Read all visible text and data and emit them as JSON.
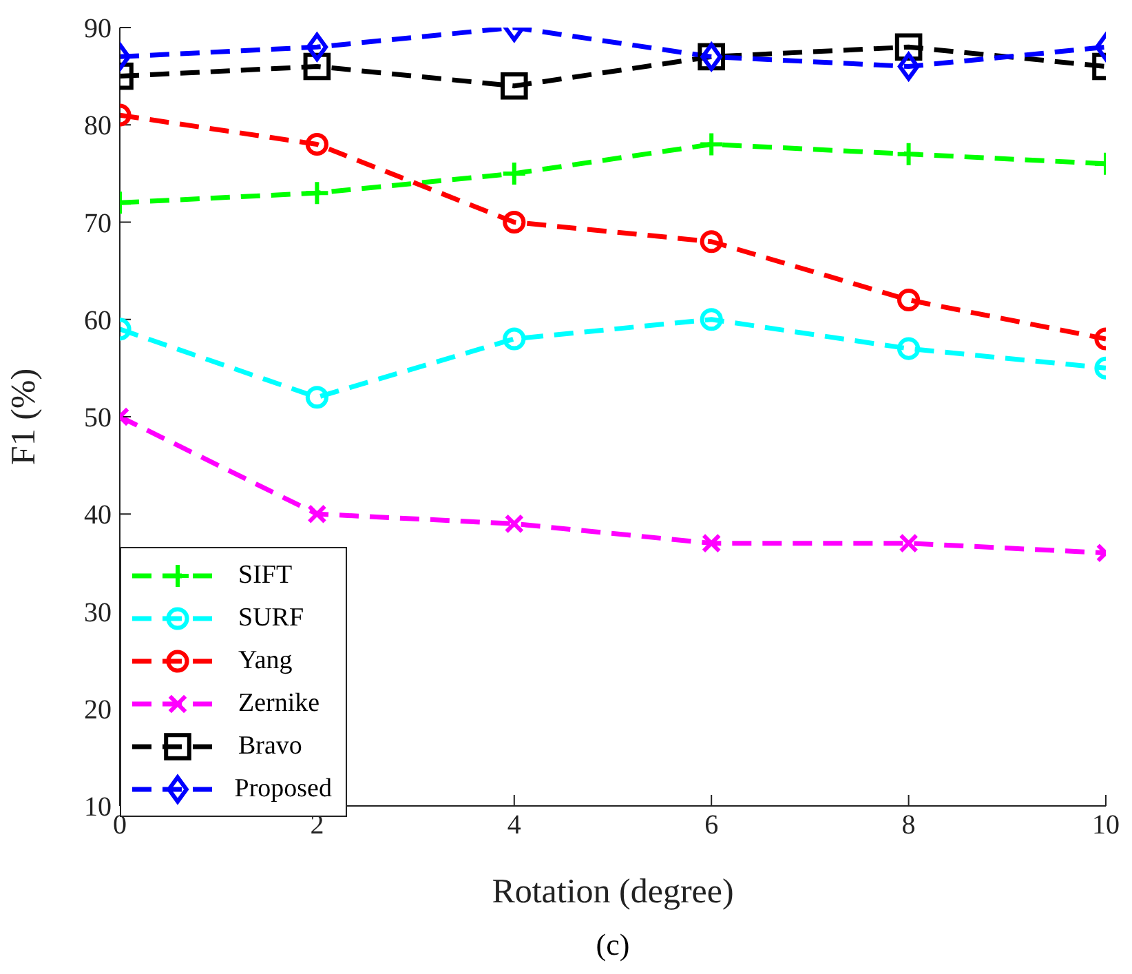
{
  "chart_data": {
    "type": "line",
    "xlabel": "Rotation (degree)",
    "ylabel": "F1 (%)",
    "annotations": [
      "(c)"
    ],
    "x": [
      0,
      2,
      4,
      6,
      8,
      10
    ],
    "xlim": [
      0,
      10
    ],
    "xticks": [
      0,
      2,
      4,
      6,
      8,
      10
    ],
    "ylim": [
      10,
      90
    ],
    "yticks": [
      10,
      20,
      30,
      40,
      50,
      60,
      70,
      80,
      90
    ],
    "legend": "bottom left",
    "line_style": "dashed",
    "series": [
      {
        "name": "SIFT",
        "color": "#00ff00",
        "marker": "plus",
        "values": [
          72,
          73,
          75,
          78,
          77,
          76
        ]
      },
      {
        "name": "SURF",
        "color": "#00ffff",
        "marker": "circle",
        "values": [
          59,
          52,
          58,
          60,
          57,
          55
        ]
      },
      {
        "name": "Yang",
        "color": "#ff0000",
        "marker": "circle",
        "values": [
          81,
          78,
          70,
          68,
          62,
          58
        ]
      },
      {
        "name": "Zernike",
        "color": "#ff00ff",
        "marker": "cross",
        "values": [
          50,
          40,
          39,
          37,
          37,
          36
        ]
      },
      {
        "name": "Bravo",
        "color": "#000000",
        "marker": "square",
        "values": [
          85,
          86,
          84,
          87,
          88,
          86
        ]
      },
      {
        "name": "Proposed",
        "color": "#0000ff",
        "marker": "diamond",
        "values": [
          87,
          88,
          90,
          87,
          86,
          88
        ]
      }
    ]
  }
}
